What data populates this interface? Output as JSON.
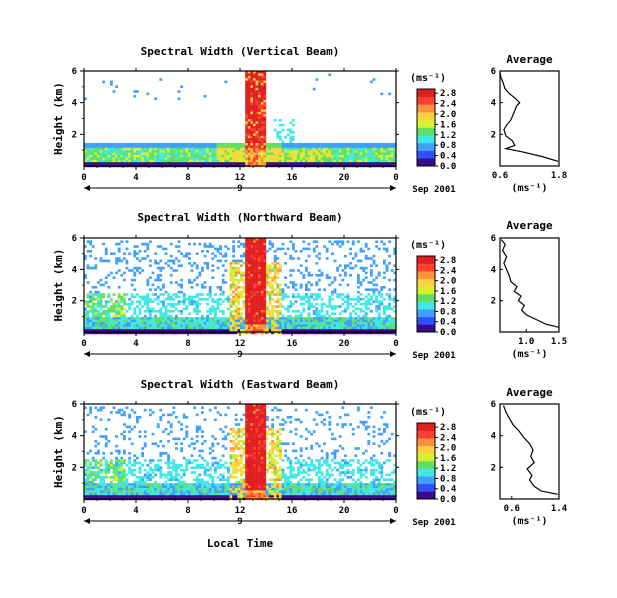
{
  "figure": {
    "xlabel": "Local Time",
    "date_label": "Sep 2001",
    "x_ticks": [
      "0",
      "4",
      "8",
      "12",
      "16",
      "20",
      "0"
    ],
    "y_label": "Height (km)",
    "avg_title": "Average",
    "unit_label": "(ms⁻¹)",
    "avg_xlabel": "(ms⁻¹)",
    "colors": [
      "#3a0a8a",
      "#3050ff",
      "#40a0ff",
      "#40e8e8",
      "#60e060",
      "#d8f030",
      "#ffd040",
      "#ff9040",
      "#ff4030",
      "#e02020"
    ]
  },
  "chart_data": [
    {
      "type": "heatmap",
      "title": "Spectral Width (Vertical Beam)",
      "day_marker": "9",
      "x_range_hours": [
        0,
        24
      ],
      "y_range_km": [
        0,
        6
      ],
      "y_ticks": [
        "2",
        "4",
        "6"
      ],
      "colorbar_ticks": [
        "0.0",
        "0.4",
        "0.8",
        "1.2",
        "1.6",
        "2.0",
        "2.4",
        "2.8"
      ],
      "features": "low layer 0.3-1.5 km with widths 0.4-1.2; intense event 12-14 h reaching 6 km with widths >2.4; sparse echoes aloft",
      "average_profile": {
        "xlim": [
          0.6,
          1.8
        ],
        "x_ticks": [
          "0.6",
          "1.8"
        ],
        "y_ticks": [
          "2",
          "4",
          "6"
        ],
        "points": [
          [
            1.78,
            0.3
          ],
          [
            1.45,
            0.6
          ],
          [
            1.05,
            0.9
          ],
          [
            0.72,
            1.1
          ],
          [
            0.9,
            1.3
          ],
          [
            0.85,
            1.6
          ],
          [
            0.72,
            1.9
          ],
          [
            0.68,
            2.3
          ],
          [
            0.74,
            2.6
          ],
          [
            0.82,
            2.9
          ],
          [
            0.86,
            3.2
          ],
          [
            0.9,
            3.5
          ],
          [
            0.94,
            3.8
          ],
          [
            1.0,
            4.0
          ],
          [
            0.9,
            4.3
          ],
          [
            0.78,
            4.6
          ],
          [
            0.7,
            4.9
          ],
          [
            0.66,
            5.3
          ],
          [
            0.62,
            5.6
          ],
          [
            0.6,
            5.9
          ]
        ]
      }
    },
    {
      "type": "heatmap",
      "title": "Spectral Width (Northward Beam)",
      "day_marker": "9",
      "x_range_hours": [
        0,
        24
      ],
      "y_range_km": [
        0,
        6
      ],
      "y_ticks": [
        "2",
        "4",
        "6"
      ],
      "colorbar_ticks": [
        "0.0",
        "0.4",
        "0.8",
        "1.2",
        "1.6",
        "2.0",
        "2.4",
        "2.8"
      ],
      "features": "broad low-level echoes 0-2.5 km; strong event 12-14 h from 0 to 6 km with widths >2.4; patchy echoes up to 6 km",
      "average_profile": {
        "xlim": [
          0.6,
          1.5
        ],
        "x_ticks": [
          "1.0",
          "1.5"
        ],
        "y_ticks": [
          "2",
          "4",
          "6"
        ],
        "points": [
          [
            1.5,
            0.3
          ],
          [
            1.3,
            0.5
          ],
          [
            1.15,
            0.8
          ],
          [
            1.0,
            1.1
          ],
          [
            0.93,
            1.4
          ],
          [
            0.97,
            1.7
          ],
          [
            0.88,
            2.0
          ],
          [
            0.92,
            2.3
          ],
          [
            0.82,
            2.6
          ],
          [
            0.86,
            2.9
          ],
          [
            0.77,
            3.2
          ],
          [
            0.74,
            3.6
          ],
          [
            0.7,
            4.0
          ],
          [
            0.66,
            4.4
          ],
          [
            0.7,
            4.8
          ],
          [
            0.64,
            5.2
          ],
          [
            0.68,
            5.6
          ],
          [
            0.62,
            5.9
          ]
        ]
      }
    },
    {
      "type": "heatmap",
      "title": "Spectral Width (Eastward Beam)",
      "day_marker": "9",
      "x_range_hours": [
        0,
        24
      ],
      "y_range_km": [
        0,
        6
      ],
      "y_ticks": [
        "2",
        "4",
        "6"
      ],
      "colorbar_ticks": [
        "0.0",
        "0.4",
        "0.8",
        "1.2",
        "1.6",
        "2.0",
        "2.4",
        "2.8"
      ],
      "features": "low echoes 0-1.5 km; event 12-15 h extending to 6 km with widths >2.4; scattered echoes aloft",
      "average_profile": {
        "xlim": [
          0.4,
          1.4
        ],
        "x_ticks": [
          "0.6",
          "1.4"
        ],
        "y_ticks": [
          "2",
          "4",
          "6"
        ],
        "points": [
          [
            1.38,
            0.3
          ],
          [
            1.1,
            0.5
          ],
          [
            0.98,
            0.8
          ],
          [
            0.9,
            1.2
          ],
          [
            0.94,
            1.5
          ],
          [
            0.86,
            1.9
          ],
          [
            0.98,
            2.3
          ],
          [
            0.92,
            2.7
          ],
          [
            0.96,
            3.1
          ],
          [
            0.9,
            3.5
          ],
          [
            0.8,
            3.9
          ],
          [
            0.72,
            4.3
          ],
          [
            0.62,
            4.7
          ],
          [
            0.56,
            5.1
          ],
          [
            0.5,
            5.5
          ],
          [
            0.46,
            5.9
          ]
        ]
      }
    }
  ]
}
